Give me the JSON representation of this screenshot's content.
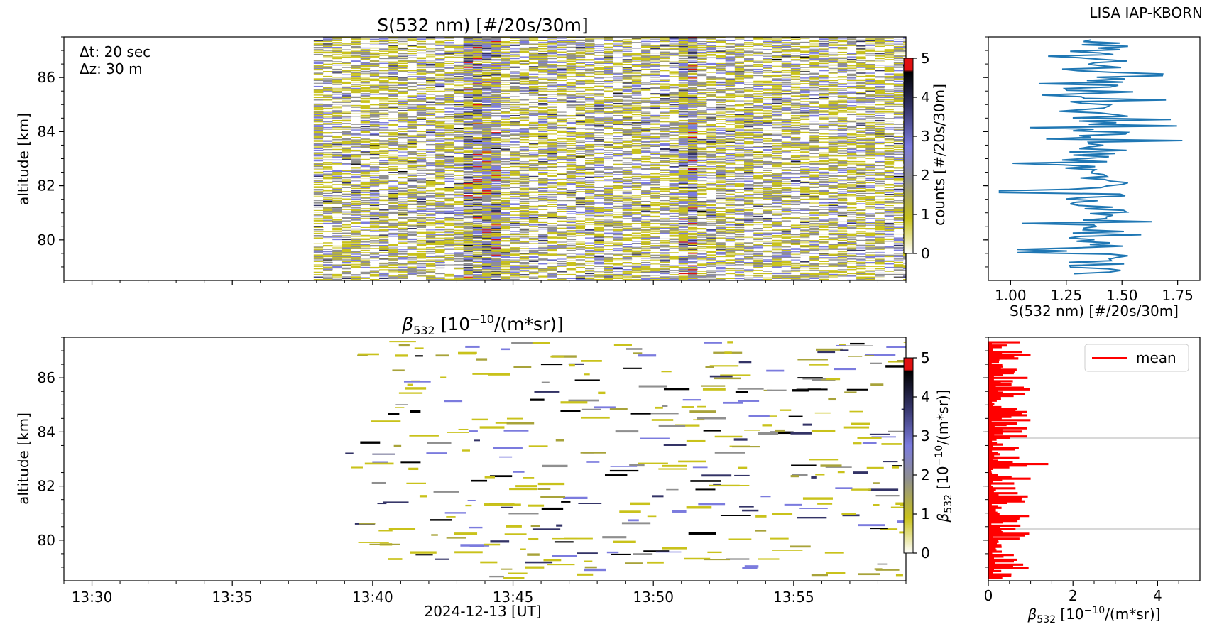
{
  "header": {
    "station_label": "LISA IAP-KBORN"
  },
  "colors": {
    "profile_line": "#1f77b4",
    "mean_line": "#ff0000",
    "axis": "#000000"
  },
  "chart_data": [
    {
      "id": "signal_heatmap",
      "type": "heatmap",
      "title": "S(532 nm) [#/20s/30m]",
      "xlabel": "",
      "ylabel": "altitude [km]",
      "x_ticks": [
        "13:30",
        "13:35",
        "13:40",
        "13:45",
        "13:50",
        "13:55"
      ],
      "y_ticks": [
        80,
        82,
        84,
        86
      ],
      "ylim": [
        78.5,
        87.5
      ],
      "time_range": [
        "13:29",
        "13:59"
      ],
      "data_start": "13:37.9",
      "annotation": [
        "Δt: 20 sec",
        "Δz: 30 m"
      ],
      "colorbar": {
        "label": "counts [#/20s/30m]",
        "ticks": [
          0,
          1,
          2,
          3,
          4,
          5
        ],
        "range": [
          0,
          5
        ],
        "colormap": [
          "#ffffff",
          "#c9c21b",
          "#8f8f8f",
          "#7b7bde",
          "#333366",
          "#000000",
          "#e01010"
        ]
      },
      "enhanced_time_columns": [
        "13:43.5",
        "13:44.0",
        "13:51.0"
      ]
    },
    {
      "id": "signal_profile",
      "type": "line",
      "xlabel": "S(532 nm) [#/20s/30m]",
      "x_ticks": [
        "1.00",
        "1.25",
        "1.50",
        "1.75"
      ],
      "xlim": [
        0.9,
        1.85
      ],
      "ylim": [
        78.5,
        87.5
      ],
      "series": [
        {
          "description": "mean counts profile vs altitude, approx 1.2-1.55 with spikes to 0.95-1.8"
        }
      ]
    },
    {
      "id": "beta_heatmap",
      "type": "heatmap",
      "title": "β532 [10−10/(m*sr)]",
      "xlabel": "2024-12-13 [UT]",
      "ylabel": "altitude [km]",
      "x_ticks": [
        "13:30",
        "13:35",
        "13:40",
        "13:45",
        "13:50",
        "13:55"
      ],
      "y_ticks": [
        80,
        82,
        84,
        86
      ],
      "ylim": [
        78.5,
        87.5
      ],
      "data_start": "13:39",
      "colorbar": {
        "label": "β532 [10−10/(m*sr)]",
        "ticks": [
          0,
          1,
          2,
          3,
          4,
          5
        ],
        "range": [
          0,
          5
        ]
      }
    },
    {
      "id": "beta_profile",
      "type": "line",
      "xlabel": "β532 [10−10/(m*sr)]",
      "x_ticks": [
        "0",
        "2",
        "4"
      ],
      "xlim": [
        0,
        5
      ],
      "ylim": [
        78.5,
        87.5
      ],
      "legend": {
        "placement": "upper-right",
        "entries": [
          "mean"
        ]
      },
      "reference_lines_km": [
        83.8,
        80.4
      ],
      "series": [
        {
          "name": "mean",
          "description": "values 0-1.4, mostly 0.3-1.0"
        }
      ]
    }
  ]
}
